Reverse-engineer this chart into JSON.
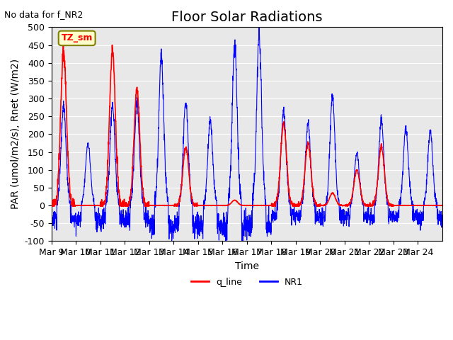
{
  "title": "Floor Solar Radiations",
  "xlabel": "Time",
  "ylabel": "PAR (umol/m2/s), Rnet (W/m2)",
  "no_data_text": "No data for f_NR2",
  "tz_label": "TZ_sm",
  "ylim": [
    -100,
    500
  ],
  "yticks": [
    -100,
    -50,
    0,
    50,
    100,
    150,
    200,
    250,
    300,
    350,
    400,
    450,
    500
  ],
  "xtick_labels": [
    "Mar 9",
    "Mar 10",
    "Mar 11",
    "Mar 12",
    "Mar 13",
    "Mar 14",
    "Mar 15",
    "Mar 16",
    "Mar 17",
    "Mar 18",
    "Mar 19",
    "Mar 20",
    "Mar 21",
    "Mar 22",
    "Mar 23",
    "Mar 24"
  ],
  "days": 16,
  "background_color": "#e8e8e8",
  "q_line_color": "red",
  "nr1_color": "blue",
  "legend_q_line": "q_line",
  "legend_nr1": "NR1",
  "title_fontsize": 14,
  "axis_fontsize": 9,
  "label_fontsize": 10,
  "day_peaks_nr1": [
    280,
    175,
    280,
    285,
    417,
    290,
    235,
    455,
    483,
    270,
    230,
    307,
    145,
    240,
    217,
    208
  ],
  "day_peaks_q": [
    430,
    0,
    430,
    325,
    0,
    163,
    0,
    15,
    0,
    230,
    175,
    35,
    100,
    165,
    0,
    0
  ],
  "night_troughs": [
    -40,
    -40,
    -40,
    -40,
    -55,
    -57,
    -57,
    -57,
    -57,
    -30,
    -30,
    -30,
    -30,
    -30,
    -30,
    -40
  ]
}
